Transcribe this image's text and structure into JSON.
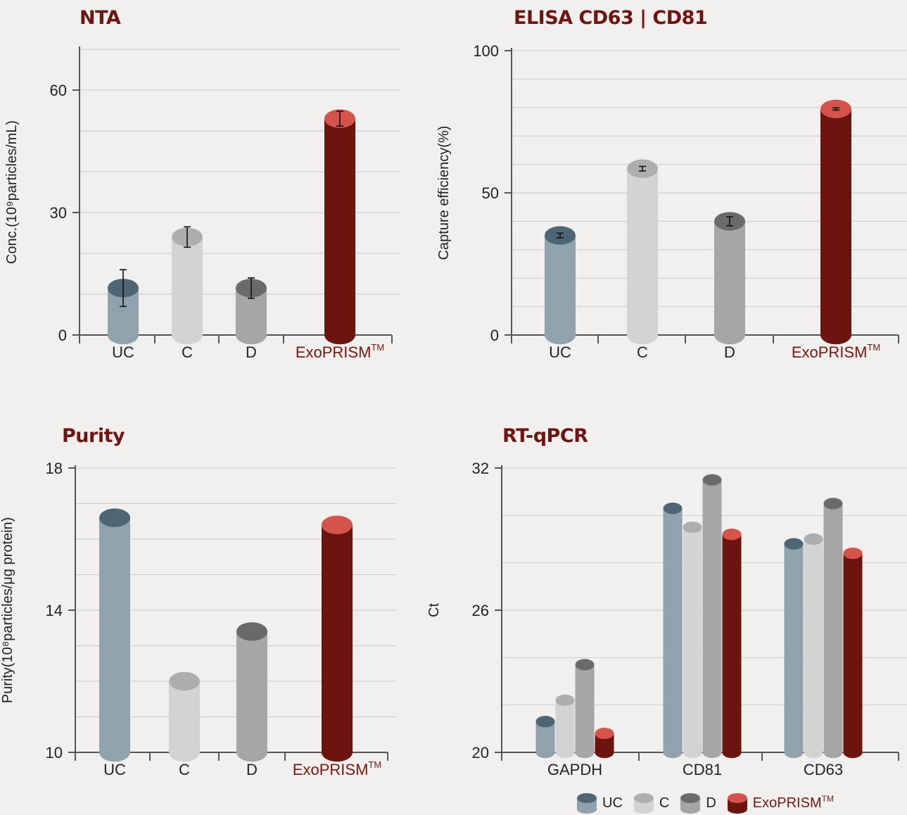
{
  "colors": {
    "UC": {
      "body": "#8fa2ad",
      "top": "#4e6573"
    },
    "C": {
      "body": "#d3d3d3",
      "top": "#aeaeae"
    },
    "D": {
      "body": "#a6a6a6",
      "top": "#6a6a6a"
    },
    "ExoPRISM": {
      "body": "#6b1410",
      "top": "#d4544c"
    },
    "brand_text": "#7a1612"
  },
  "legend": [
    {
      "key": "UC",
      "label": "UC"
    },
    {
      "key": "C",
      "label": "C"
    },
    {
      "key": "D",
      "label": "D"
    },
    {
      "key": "ExoPRISM",
      "label": "ExoPRISM",
      "tm": "TM"
    }
  ],
  "chart_data": [
    {
      "id": "nta",
      "type": "bar",
      "title": "NTA",
      "ylabel": "Conc.(10⁹particles/mL)",
      "ylim": [
        0,
        70
      ],
      "yticks": [
        0,
        30,
        60
      ],
      "grid_step": 10,
      "categories": [
        "UC",
        "C",
        "D",
        "ExoPRISM"
      ],
      "tm": "TM",
      "values": [
        11.5,
        24,
        11.5,
        53
      ],
      "errors": [
        4.5,
        2.5,
        2.5,
        1.8
      ]
    },
    {
      "id": "elisa",
      "type": "bar",
      "title": "ELISA CD63 | CD81",
      "ylabel": "Capture efficiency(%)",
      "ylim": [
        0,
        100
      ],
      "yticks": [
        0,
        50,
        100
      ],
      "grid_step": 10,
      "categories": [
        "UC",
        "C",
        "D",
        "ExoPRISM"
      ],
      "tm": "TM",
      "values": [
        35,
        58.5,
        40,
        79.5
      ],
      "errors": [
        0.8,
        0.8,
        1.6,
        0.4
      ]
    },
    {
      "id": "purity",
      "type": "bar",
      "title": "Purity",
      "ylabel": "Purity(10⁸particles/μg  protein)",
      "ylim": [
        10,
        18
      ],
      "yticks": [
        10,
        14,
        18
      ],
      "grid_step": 1,
      "categories": [
        "UC",
        "C",
        "D",
        "ExoPRISM"
      ],
      "tm": "TM",
      "values": [
        16.6,
        12.0,
        13.4,
        16.4
      ]
    },
    {
      "id": "rtqpcr",
      "type": "bar",
      "title": "RT-qPCR",
      "ylabel": "Ct",
      "ylim": [
        20,
        32
      ],
      "yticks": [
        20,
        26,
        32
      ],
      "grid_step": 2,
      "categories": [
        "GAPDH",
        "CD81",
        "CD63"
      ],
      "series": [
        {
          "name": "UC",
          "values": [
            21.3,
            30.3,
            28.8
          ]
        },
        {
          "name": "C",
          "values": [
            22.2,
            29.5,
            29.0
          ]
        },
        {
          "name": "D",
          "values": [
            23.7,
            31.5,
            30.5
          ]
        },
        {
          "name": "ExoPRISM",
          "values": [
            20.8,
            29.2,
            28.4
          ]
        }
      ]
    }
  ]
}
